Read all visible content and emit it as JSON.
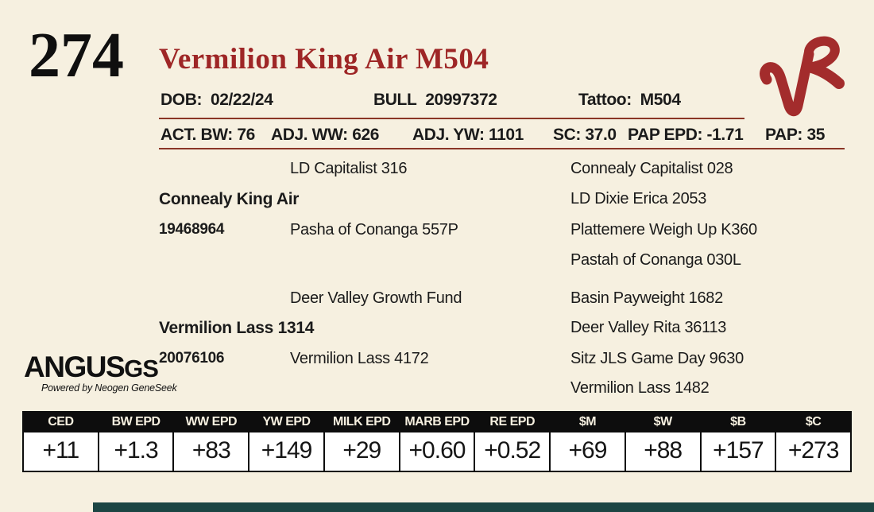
{
  "page": {
    "background": "#f6f0e0",
    "accent_red": "#9e2626",
    "rule_red": "#8a3526",
    "brand_red": "#a32c2c",
    "footer_teal": "#1c4543"
  },
  "header": {
    "lot_number": "274",
    "title": "Vermilion King Air M504",
    "brand_logo": "vermilion-ranch-vr-brand",
    "meta": [
      {
        "label": "DOB:",
        "value": "02/22/24"
      },
      {
        "label": "BULL",
        "value": "20997372"
      },
      {
        "label": "Tattoo:",
        "value": "M504"
      }
    ]
  },
  "stats": {
    "items": [
      {
        "label": "ACT. BW:",
        "value": "76"
      },
      {
        "label": "ADJ. WW:",
        "value": "626"
      },
      {
        "label": "ADJ. YW:",
        "value": "1101"
      },
      {
        "label": "SC:",
        "value": "37.0"
      },
      {
        "label": "PAP EPD:",
        "value": "-1.71"
      }
    ],
    "pap": {
      "label": "PAP:",
      "value": "35"
    }
  },
  "pedigree": {
    "sire_group": {
      "name": "Connealy King Air",
      "reg": "19468964",
      "sire": "LD Capitalist 316",
      "dam": "Pasha of Conanga 557P",
      "ancestors": [
        "Connealy Capitalist 028",
        "LD Dixie Erica 2053",
        "Plattemere Weigh Up K360",
        "Pastah of Conanga 030L"
      ]
    },
    "dam_group": {
      "name": "Vermilion Lass 1314",
      "reg": "20076106",
      "sire": "Deer Valley Growth Fund",
      "dam": "Vermilion Lass 4172",
      "ancestors": [
        "Basin Payweight 1682",
        "Deer Valley Rita 36113",
        "Sitz JLS Game Day 9630",
        "Vermilion Lass 1482"
      ]
    }
  },
  "logo": {
    "name": "ANGUS",
    "suffix": "GS",
    "tagline": "Powered by Neogen GeneSeek"
  },
  "epd_table": {
    "columns": [
      "CED",
      "BW EPD",
      "WW EPD",
      "YW EPD",
      "MILK EPD",
      "MARB EPD",
      "RE EPD",
      "$M",
      "$W",
      "$B",
      "$C"
    ],
    "values": [
      "+11",
      "+1.3",
      "+83",
      "+149",
      "+29",
      "+0.60",
      "+0.52",
      "+69",
      "+88",
      "+157",
      "+273"
    ]
  }
}
